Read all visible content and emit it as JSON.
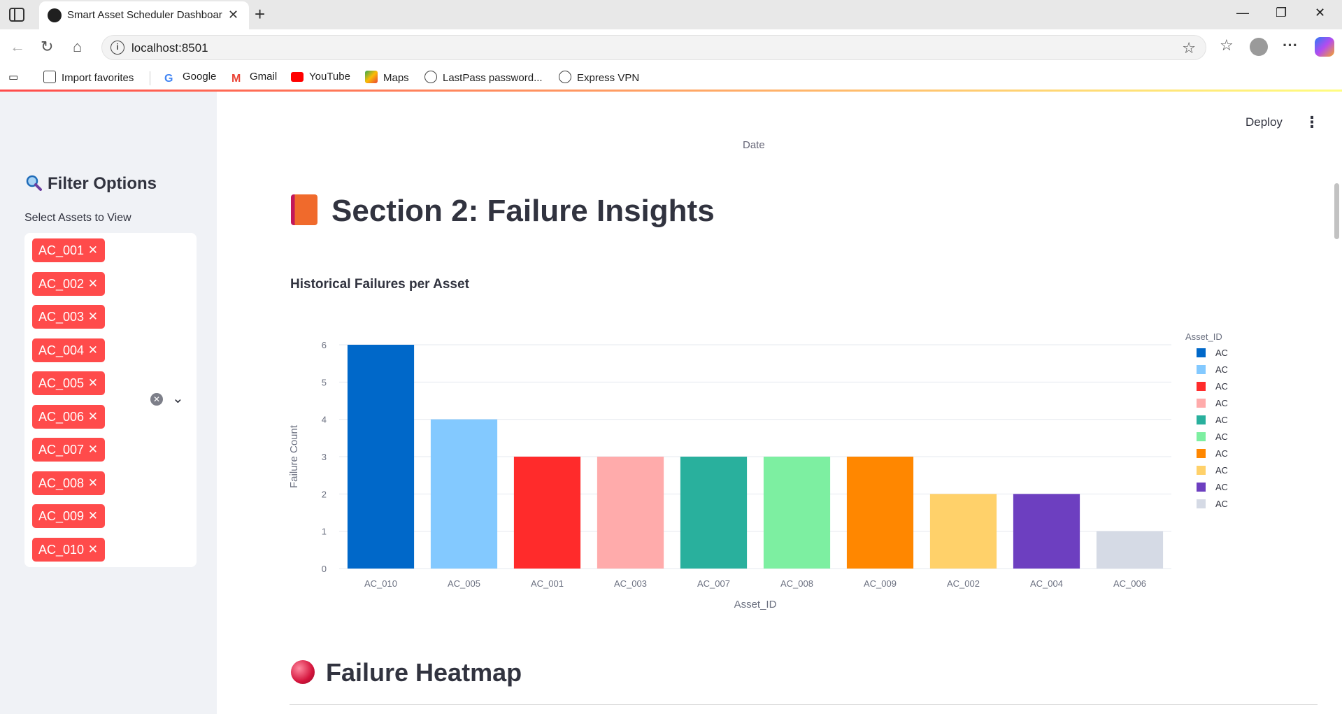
{
  "browser": {
    "tab_title": "Smart Asset Scheduler Dashboard",
    "tab_close": "✕",
    "new_tab": "+",
    "url": "localhost:8501",
    "favorites": [
      {
        "label": "Import favorites",
        "icon": "import-icon"
      },
      {
        "label": "Google",
        "icon": "google-icon"
      },
      {
        "label": "Gmail",
        "icon": "gmail-icon"
      },
      {
        "label": "YouTube",
        "icon": "youtube-icon"
      },
      {
        "label": "Maps",
        "icon": "maps-icon"
      },
      {
        "label": "LastPass password...",
        "icon": "globe-icon"
      },
      {
        "label": "Express VPN",
        "icon": "globe-icon"
      }
    ]
  },
  "sidebar": {
    "title": "Filter Options",
    "select_label": "Select Assets to View",
    "selected_assets": [
      "AC_001",
      "AC_002",
      "AC_003",
      "AC_004",
      "AC_005",
      "AC_006",
      "AC_007",
      "AC_008",
      "AC_009",
      "AC_010"
    ],
    "chip_remove": "✕"
  },
  "header": {
    "deploy": "Deploy",
    "menu": "⋮"
  },
  "main": {
    "prev_axis_fragment": "Date",
    "section_title": "Section 2: Failure Insights",
    "chart_heading": "Historical Failures per Asset",
    "next_heading": "Failure Heatmap"
  },
  "chart_data": {
    "type": "bar",
    "title": "Historical Failures per Asset",
    "xlabel": "Asset_ID",
    "ylabel": "Failure Count",
    "legend_title": "Asset_ID",
    "legend_position": "right",
    "grid": true,
    "ylim": [
      0,
      6
    ],
    "yticks": [
      0,
      1,
      2,
      3,
      4,
      5,
      6
    ],
    "categories": [
      "AC_010",
      "AC_005",
      "AC_001",
      "AC_003",
      "AC_007",
      "AC_008",
      "AC_009",
      "AC_002",
      "AC_004",
      "AC_006"
    ],
    "values": [
      6,
      4,
      3,
      3,
      3,
      3,
      3,
      2,
      2,
      1
    ],
    "colors": [
      "#0068c9",
      "#83c9ff",
      "#ff2b2b",
      "#ffabab",
      "#29b09d",
      "#7defa1",
      "#ff8700",
      "#ffd16a",
      "#6d3fc0",
      "#d5dae5"
    ]
  }
}
